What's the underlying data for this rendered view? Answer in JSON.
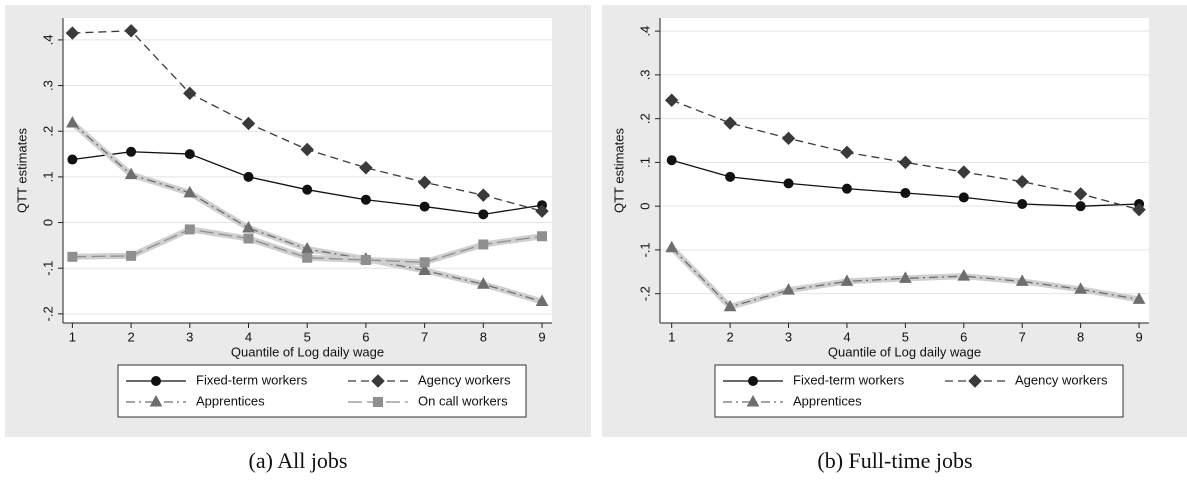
{
  "chart_data": [
    {
      "type": "line",
      "caption": "(a) All jobs",
      "ylabel": "QTT estimates",
      "xlabel": "Quantile of Log daily wage",
      "x": [
        1,
        2,
        3,
        4,
        5,
        6,
        7,
        8,
        9
      ],
      "xlim": [
        0.84,
        9.17
      ],
      "xticks": [
        1,
        2,
        3,
        4,
        5,
        6,
        7,
        8,
        9
      ],
      "ylim": [
        -0.22,
        0.448
      ],
      "yticks": [
        {
          "value": -0.2,
          "label": "-.2"
        },
        {
          "value": -0.1,
          "label": "-.1"
        },
        0,
        {
          "value": 0.1,
          "label": ".1"
        },
        {
          "value": 0.2,
          "label": ".2"
        },
        {
          "value": 0.3,
          "label": ".3"
        },
        {
          "value": 0.4,
          "label": ".4"
        }
      ],
      "grid": true,
      "series": [
        {
          "name": "Fixed-term workers",
          "color": "#111111",
          "dash": "solid",
          "marker": "circle",
          "values": [
            0.138,
            0.155,
            0.15,
            0.1,
            0.072,
            0.05,
            0.035,
            0.018,
            0.038
          ]
        },
        {
          "name": "Agency workers",
          "color": "#3a3a3a",
          "dash": "dash",
          "marker": "diamond",
          "values": [
            0.415,
            0.42,
            0.283,
            0.217,
            0.16,
            0.12,
            0.088,
            0.06,
            0.025
          ]
        },
        {
          "name": "Apprentices",
          "color": "#6e6e6e",
          "dash": "dashdot",
          "marker": "triangle",
          "values": [
            0.218,
            0.105,
            0.065,
            -0.012,
            -0.058,
            -0.08,
            -0.105,
            -0.135,
            -0.173
          ]
        },
        {
          "name": "On call workers",
          "color": "#8f8f8f",
          "dash": "longdash",
          "marker": "square",
          "values": [
            -0.075,
            -0.073,
            -0.015,
            -0.035,
            -0.077,
            -0.082,
            -0.087,
            -0.048,
            -0.03
          ]
        }
      ]
    },
    {
      "type": "line",
      "caption": "(b) Full-time jobs",
      "ylabel": "QTT estimates",
      "xlabel": "Quantile of Log daily wage",
      "x": [
        1,
        2,
        3,
        4,
        5,
        6,
        7,
        8,
        9
      ],
      "xlim": [
        0.8,
        9.17
      ],
      "xticks": [
        1,
        2,
        3,
        4,
        5,
        6,
        7,
        8,
        9
      ],
      "ylim": [
        -0.267,
        0.43
      ],
      "yticks": [
        {
          "value": -0.2,
          "label": "-.2"
        },
        {
          "value": -0.1,
          "label": "-.1"
        },
        0,
        {
          "value": 0.1,
          "label": ".1"
        },
        {
          "value": 0.2,
          "label": ".2"
        },
        {
          "value": 0.3,
          "label": ".3"
        },
        {
          "value": 0.4,
          "label": ".4"
        }
      ],
      "grid": true,
      "series": [
        {
          "name": "Fixed-term workers",
          "color": "#111111",
          "dash": "solid",
          "marker": "circle",
          "values": [
            0.105,
            0.067,
            0.052,
            0.04,
            0.03,
            0.02,
            0.005,
            0.0,
            0.005
          ]
        },
        {
          "name": "Agency workers",
          "color": "#3a3a3a",
          "dash": "dash",
          "marker": "diamond",
          "values": [
            0.242,
            0.19,
            0.155,
            0.123,
            0.1,
            0.078,
            0.056,
            0.028,
            -0.008
          ]
        },
        {
          "name": "Apprentices",
          "color": "#6e6e6e",
          "dash": "dashdot",
          "marker": "triangle",
          "values": [
            -0.095,
            -0.23,
            -0.192,
            -0.172,
            -0.165,
            -0.16,
            -0.172,
            -0.19,
            -0.213
          ]
        }
      ]
    }
  ]
}
